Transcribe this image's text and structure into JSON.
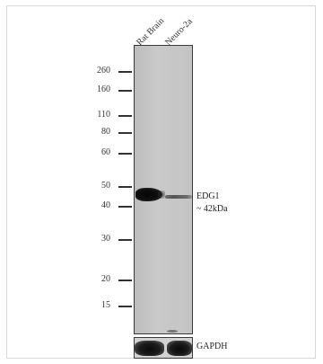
{
  "lanes": [
    "Rat Brain",
    "Neuro-2a"
  ],
  "markers": [
    "260",
    "160",
    "110",
    "80",
    "60",
    "50",
    "40",
    "30",
    "20",
    "15"
  ],
  "target": {
    "name": "EDG1",
    "size": "~ 42kDa"
  },
  "loading_control": "GAPDH"
}
